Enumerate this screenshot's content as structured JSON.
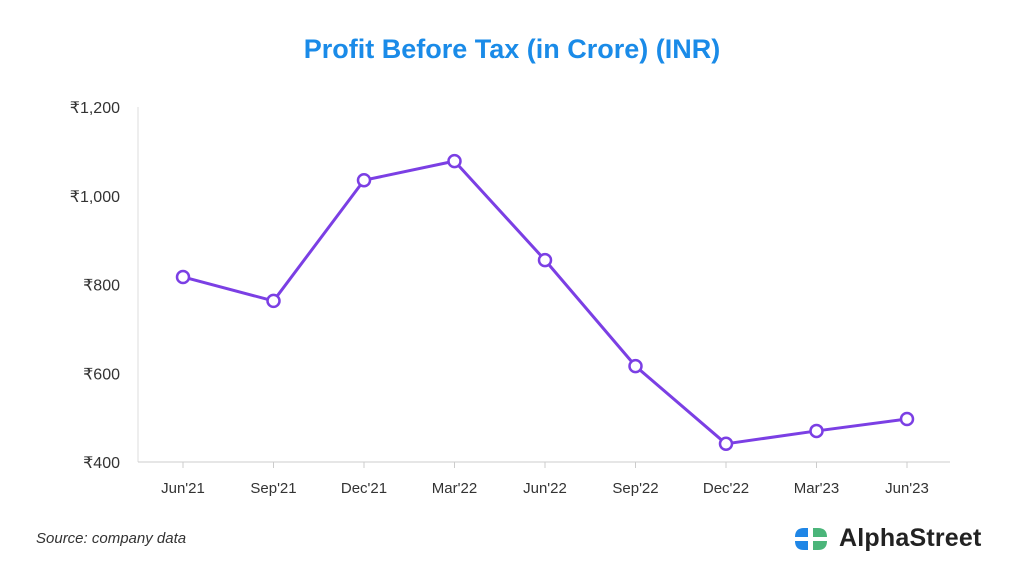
{
  "chart_data": {
    "type": "line",
    "title": "Profit Before Tax (in Crore) (INR)",
    "xlabel": "",
    "ylabel": "",
    "categories": [
      "Jun'21",
      "Sep'21",
      "Dec'21",
      "Mar'22",
      "Jun'22",
      "Sep'22",
      "Dec'22",
      "Mar'23",
      "Jun'23"
    ],
    "series": [
      {
        "name": "Profit Before Tax",
        "values": [
          817,
          763,
          1035,
          1078,
          855,
          616,
          441,
          470,
          497
        ],
        "color": "#7b3fe4"
      }
    ],
    "ylim": [
      400,
      1200
    ],
    "yticks": [
      400,
      600,
      800,
      1000,
      1200
    ],
    "ytick_labels": [
      "₹400",
      "₹600",
      "₹800",
      "₹1,000",
      "₹1,200"
    ],
    "grid": false,
    "legend": "none"
  },
  "footer": {
    "source": "Source: company data",
    "brand": "AlphaStreet"
  },
  "colors": {
    "title": "#1a8be8",
    "line": "#7b3fe4",
    "logo_blue": "#1f86e6",
    "logo_green": "#4bb57a"
  }
}
